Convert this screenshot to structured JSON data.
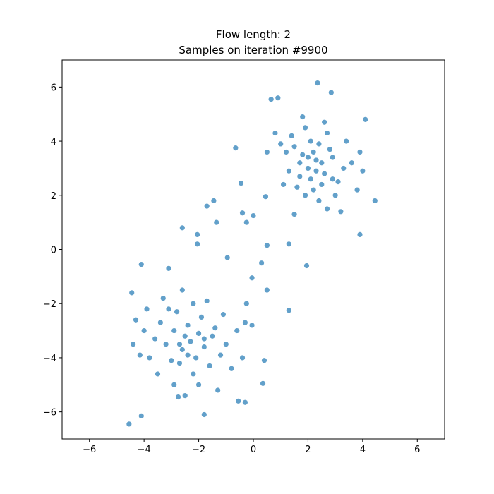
{
  "chart_data": {
    "type": "scatter",
    "title": "Flow length: 2",
    "subtitle": "Samples on iteration #9900",
    "color": "#1f77b4",
    "xlim": [
      -7,
      7
    ],
    "ylim": [
      -7,
      7
    ],
    "xticks": [
      {
        "value": -6,
        "label": "−6"
      },
      {
        "value": -4,
        "label": "−4"
      },
      {
        "value": -2,
        "label": "−2"
      },
      0,
      2,
      4,
      6
    ],
    "yticks": [
      {
        "value": -6,
        "label": "−6"
      },
      {
        "value": -4,
        "label": "−4"
      },
      {
        "value": -2,
        "label": "−2"
      },
      0,
      2,
      4,
      6
    ],
    "x": [
      2.35,
      2.85,
      0.65,
      0.9,
      4.1,
      4.45,
      3.9,
      1.95,
      1.3,
      1.3,
      0.5,
      -0.05,
      0.3,
      0.5,
      -0.25,
      -0.95,
      -2.05,
      -2.05,
      -2.6,
      -1.7,
      -1.45,
      -1.35,
      -0.65,
      -0.45,
      -0.4,
      -0.25,
      0,
      0.45,
      -4.1,
      -4.45,
      -4.55,
      -4.1,
      -1.8,
      -0.55,
      -0.3,
      -2.75,
      -3.1,
      -4.4,
      -4.15,
      -4.3,
      0.35,
      0.4,
      -0.05,
      2.0,
      2.3,
      1.8,
      2.6,
      2.1,
      1.5,
      2.9,
      2.4,
      1.7,
      2.2,
      3.1,
      1.2,
      2.7,
      1.9,
      3.3,
      2.5,
      1.4,
      2.8,
      2.0,
      2.3,
      3.6,
      1.0,
      2.1,
      3.0,
      1.6,
      2.4,
      3.8,
      1.3,
      2.6,
      1.8,
      3.4,
      2.2,
      1.9,
      2.9,
      0.8,
      3.9,
      1.1,
      2.5,
      1.7,
      2.7,
      3.2,
      1.5,
      4.0,
      0.5,
      -2.3,
      -2.0,
      -2.6,
      -1.8,
      -2.9,
      -2.4,
      -2.1,
      -1.5,
      -3.2,
      -2.7,
      -1.9,
      -2.5,
      -1.2,
      -3.4,
      -2.2,
      -1.6,
      -3.0,
      -2.8,
      -1.4,
      -3.6,
      -2.0,
      -1.0,
      -3.1,
      -2.4,
      -1.7,
      -3.8,
      -2.6,
      -0.8,
      -3.5,
      -1.3,
      -2.9,
      -0.6,
      -4.0,
      -1.1,
      -2.2,
      -3.3,
      -0.4,
      -2.5,
      -1.8,
      -2.7,
      -0.3,
      -3.9
    ],
    "y": [
      6.15,
      5.8,
      5.55,
      5.6,
      4.8,
      1.8,
      0.55,
      -0.6,
      -2.25,
      0.2,
      -1.5,
      -1.05,
      -0.5,
      0.15,
      -2.0,
      -0.3,
      0.55,
      0.2,
      0.8,
      1.6,
      1.8,
      1.0,
      3.75,
      2.45,
      1.35,
      1.0,
      1.25,
      1.95,
      -0.55,
      -1.6,
      -6.45,
      -6.15,
      -6.1,
      -5.6,
      -5.65,
      -5.45,
      -0.7,
      -3.5,
      -3.9,
      -2.6,
      -4.95,
      -4.1,
      -2.8,
      3.0,
      3.3,
      3.5,
      2.8,
      2.6,
      3.8,
      3.4,
      3.9,
      2.7,
      2.2,
      2.5,
      3.6,
      4.3,
      4.5,
      3.0,
      2.4,
      4.2,
      3.7,
      3.4,
      2.9,
      3.2,
      3.9,
      4.0,
      2.0,
      2.3,
      1.8,
      2.2,
      2.9,
      4.7,
      4.9,
      4.0,
      3.6,
      2.0,
      2.6,
      4.3,
      3.6,
      2.4,
      3.2,
      3.2,
      1.5,
      1.4,
      1.3,
      2.9,
      3.6,
      -3.4,
      -3.1,
      -3.7,
      -3.6,
      -3.0,
      -2.8,
      -4.0,
      -3.2,
      -3.5,
      -4.2,
      -2.5,
      -3.2,
      -3.9,
      -2.7,
      -4.6,
      -4.3,
      -4.1,
      -2.3,
      -2.9,
      -3.3,
      -5.0,
      -3.5,
      -2.2,
      -3.9,
      -1.9,
      -4.0,
      -1.5,
      -4.4,
      -4.6,
      -5.2,
      -5.0,
      -3.0,
      -3.0,
      -2.4,
      -2.0,
      -1.8,
      -4.0,
      -5.4,
      -3.3,
      -3.5,
      -2.7,
      -2.2
    ]
  }
}
